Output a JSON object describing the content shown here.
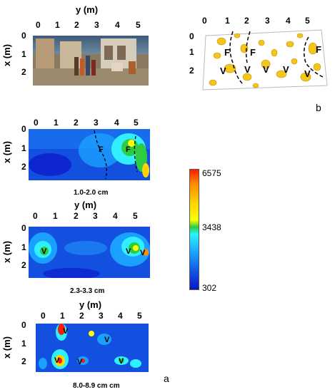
{
  "axis": {
    "y_label": "y (m)",
    "x_label": "x (m)"
  },
  "y_ticks": [
    "0",
    "1",
    "2",
    "3",
    "4",
    "5"
  ],
  "x_ticks": [
    "0",
    "1",
    "2"
  ],
  "panel_b": {
    "letter": "b",
    "marks": [
      "F",
      "F",
      "F",
      "V",
      "V",
      "V",
      "V",
      "V"
    ]
  },
  "panel_a_letter": "a",
  "slices": [
    {
      "depth": "1.0-2.0 cm",
      "marks": [
        "F",
        "F"
      ]
    },
    {
      "depth": "2.3-3.3 cm",
      "marks": [
        "V",
        "V",
        "V"
      ]
    },
    {
      "depth": "8.0-8.9 cm cm",
      "marks": [
        "V",
        "V",
        "V",
        "V",
        "V"
      ]
    }
  ],
  "colorbar": {
    "max": "6575",
    "mid": "3438",
    "min": "302",
    "colors": [
      "#ff1a00",
      "#ff8c00",
      "#ffd400",
      "#ffff00",
      "#2ecc40",
      "#30f0ff",
      "#1aa0ff",
      "#1450e0",
      "#0a14c8"
    ]
  }
}
